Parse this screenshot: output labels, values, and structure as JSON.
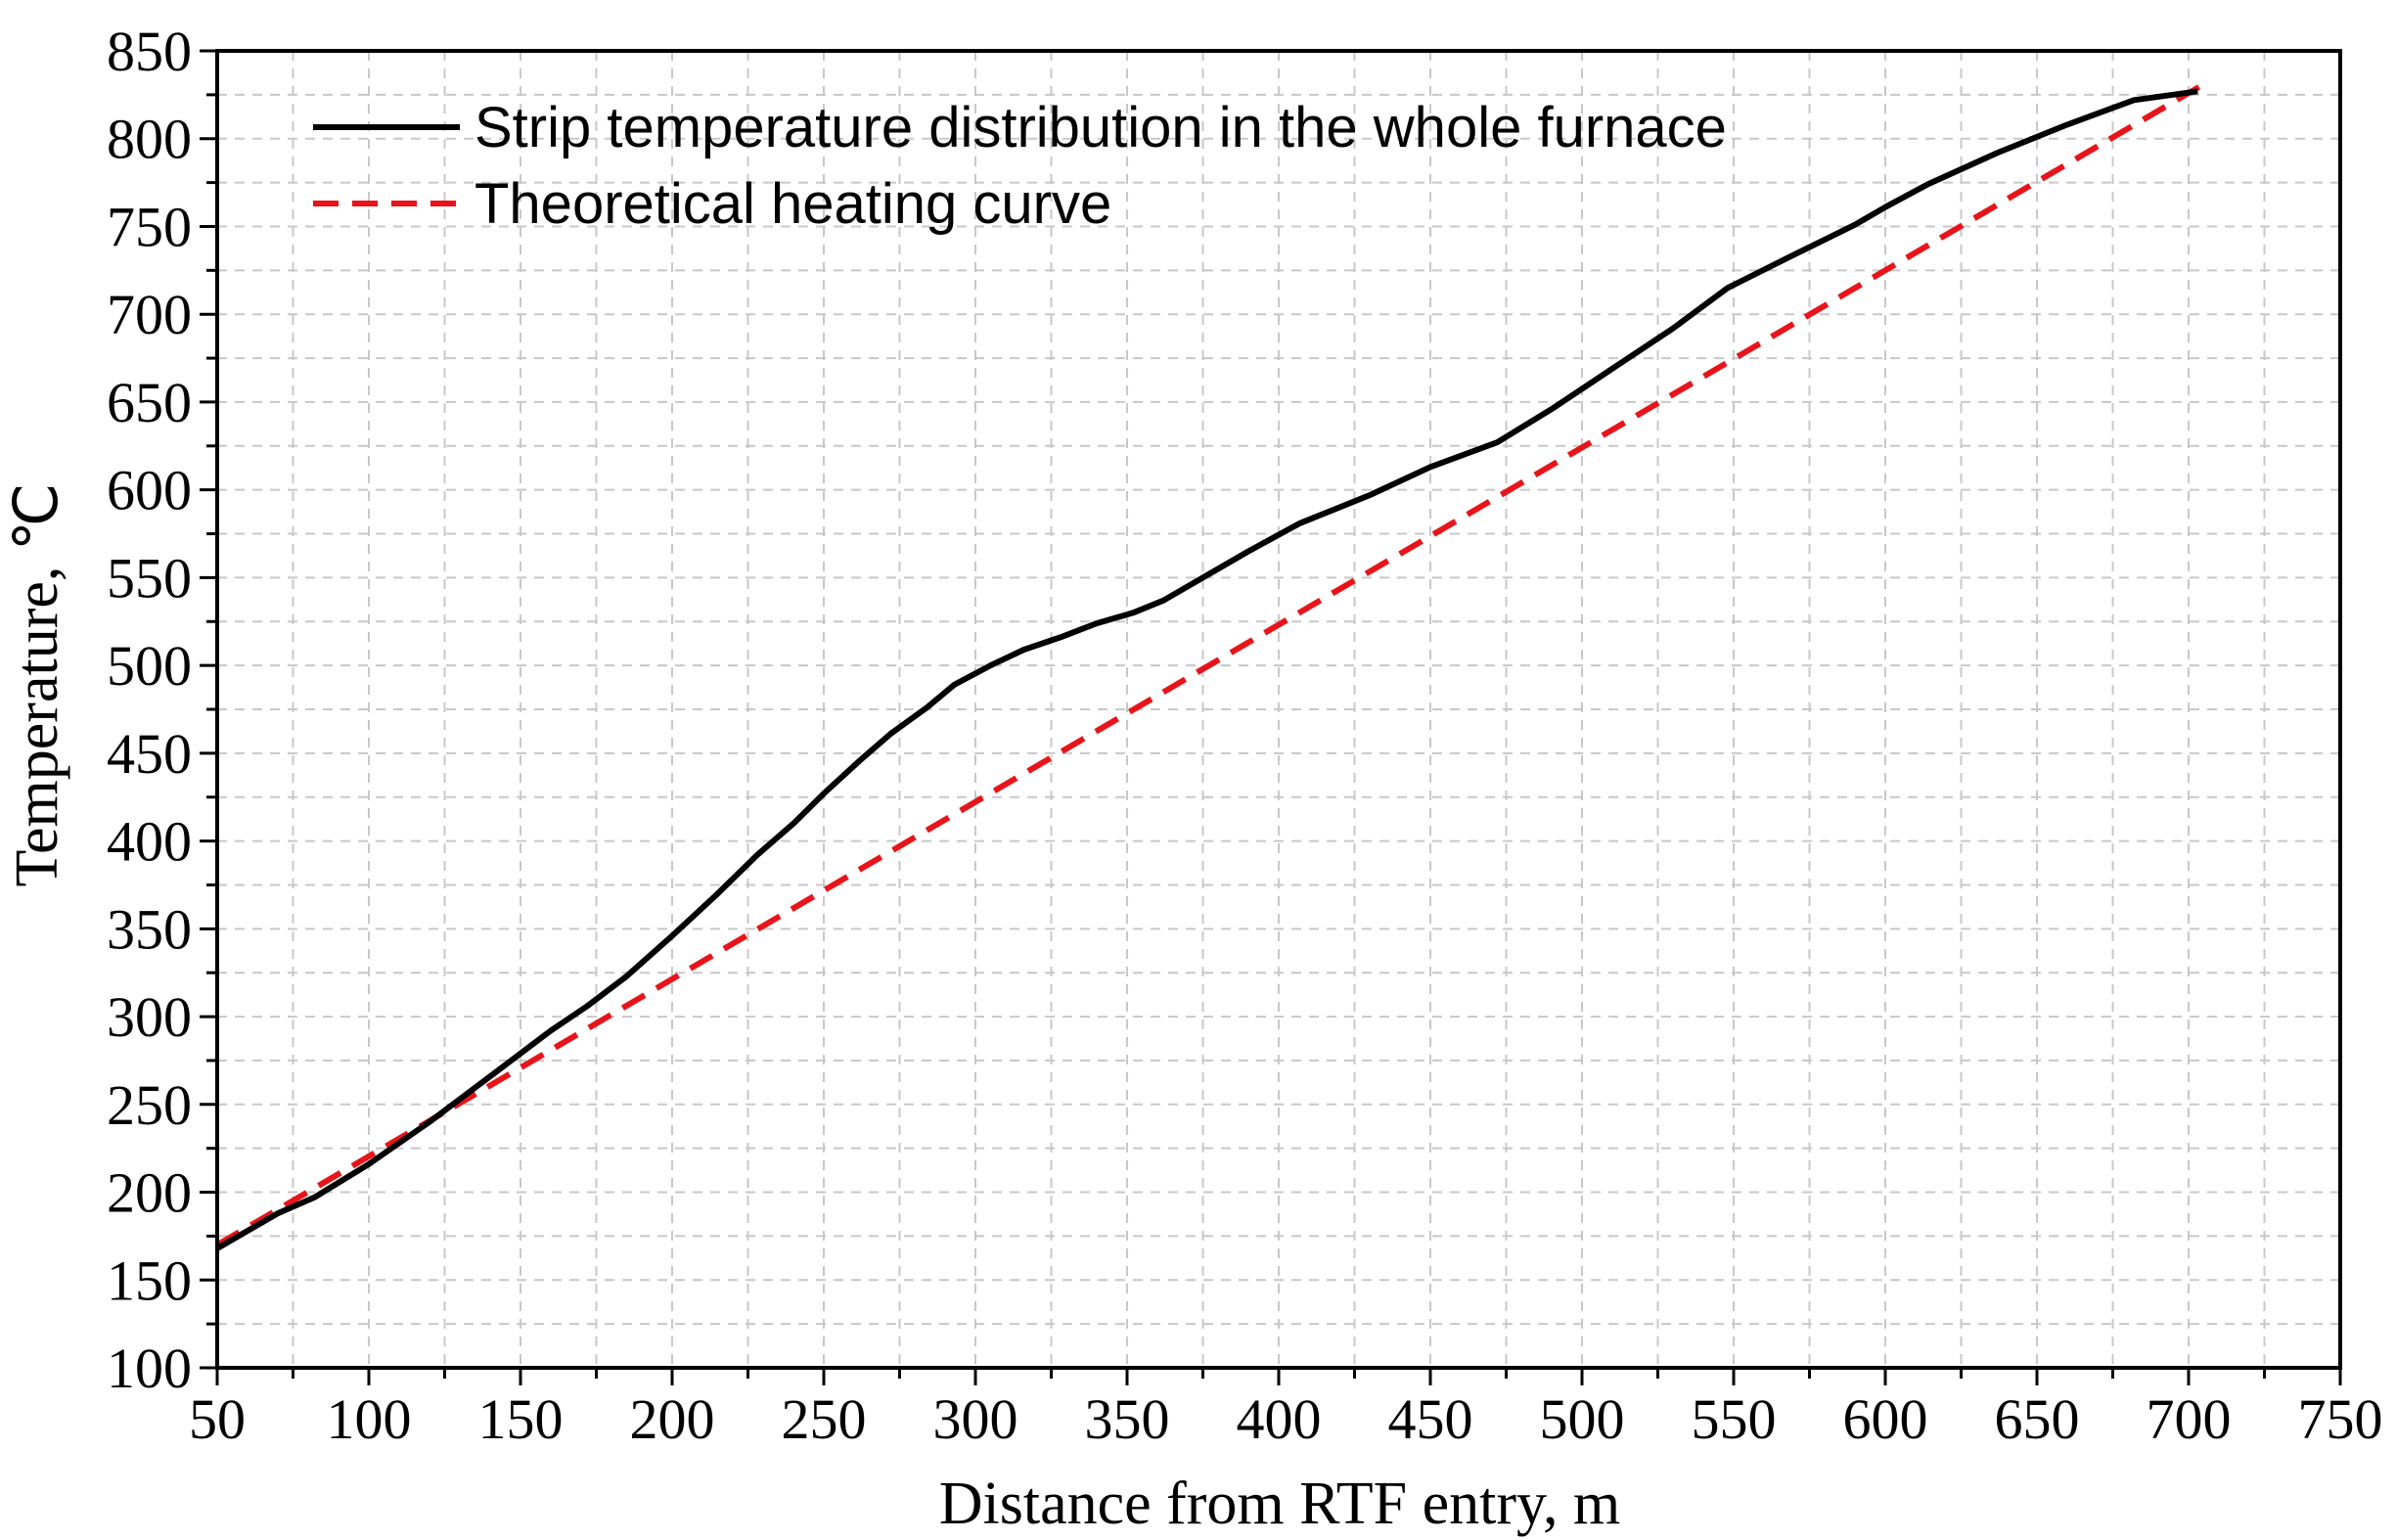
{
  "chart_data": {
    "type": "line",
    "title": "",
    "xlabel": "Distance from RTF entry, m",
    "ylabel": "Temperature, ℃",
    "xlim": [
      50,
      750
    ],
    "ylim": [
      100,
      850
    ],
    "xticks": [
      50,
      100,
      150,
      200,
      250,
      300,
      350,
      400,
      450,
      500,
      550,
      600,
      650,
      700,
      750
    ],
    "yticks": [
      100,
      150,
      200,
      250,
      300,
      350,
      400,
      450,
      500,
      550,
      600,
      650,
      700,
      750,
      800,
      850
    ],
    "grid": true,
    "legend_position": "top-left",
    "series": [
      {
        "name": "Strip temperature distribution in the whole furnace",
        "color": "#000000",
        "style": "solid",
        "x": [
          50,
          60,
          70,
          82,
          100,
          120,
          140,
          160,
          172,
          185,
          200,
          215,
          228,
          240,
          250,
          262,
          272,
          284,
          293,
          305,
          316,
          328,
          340,
          352,
          362,
          375,
          390,
          407,
          430,
          450,
          472,
          490,
          510,
          530,
          548,
          570,
          590,
          600,
          614,
          637,
          660,
          682,
          703
        ],
        "y": [
          168,
          178,
          188,
          197,
          216,
          240,
          266,
          292,
          306,
          323,
          346,
          370,
          392,
          410,
          427,
          446,
          461,
          476,
          489,
          500,
          509,
          516,
          524,
          530,
          537,
          550,
          565,
          581,
          597,
          613,
          627,
          646,
          669,
          692,
          715,
          734,
          751,
          761,
          774,
          792,
          808,
          822,
          827
        ]
      },
      {
        "name": "Theoretical heating curve",
        "color": "#e8141a",
        "style": "dashed",
        "x": [
          50,
          705
        ],
        "y": [
          170,
          831
        ]
      }
    ]
  }
}
